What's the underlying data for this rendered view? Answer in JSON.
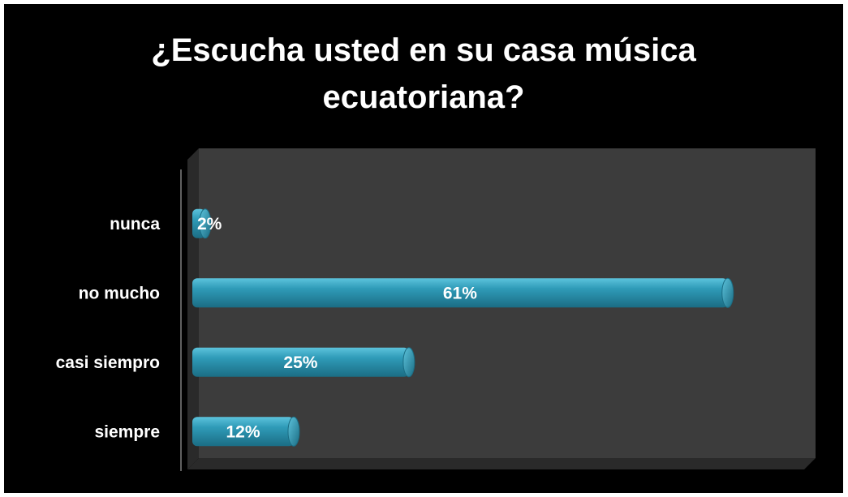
{
  "chart_data": {
    "type": "bar",
    "orientation": "horizontal",
    "title_lines": [
      "¿Escucha usted en su casa música",
      "ecuatoriana?"
    ],
    "categories": [
      "siempre",
      "casi siempro",
      "no mucho",
      "nunca"
    ],
    "values": [
      12,
      25,
      61,
      2
    ],
    "value_labels": [
      "12%",
      "25%",
      "61%",
      "2%"
    ],
    "xlim": [
      0,
      70
    ],
    "grid": false,
    "legend": "none",
    "colors": {
      "background": "#000000",
      "bar": "#2f9bb8",
      "bar_highlight": "#5cc3dc",
      "bar_shadow": "#1b6d84",
      "wall": "#3c3c3c",
      "floor": "#2a2a2a",
      "text": "#ffffff"
    }
  }
}
